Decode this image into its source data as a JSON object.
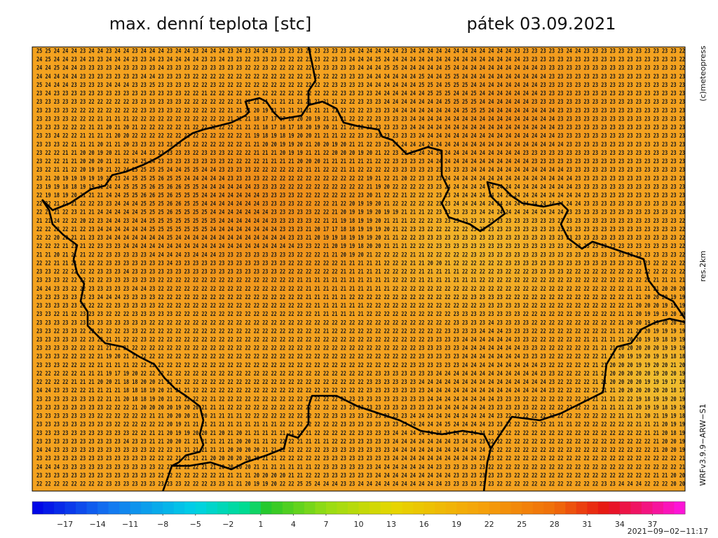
{
  "header": {
    "title": "max. denní teplota [stc]",
    "date": "pátek 03.09.2021"
  },
  "credits": "(c)meteopress",
  "resolution": "res.2km",
  "model": "WRFv3.9.9−ARW−S1",
  "timestamp": "2021−09−02−11:17",
  "map": {
    "rows": [
      "25 25 24 24 24 23 24 24 23 24 24 23 24 24 24 23 24 24 23 24 24 24 23 24 23 24 24 23 23 23 23 23 23 23 23 23 24 24 24 24 24 24 23 24 24 24 24 24 24 24 24 24 24 24 24 23 23 23 23 23 23 24 24 23 23 23 23 23 23 23 23 23 23 23 22",
      "24 25 24 24 23 24 23 23 24 24 24 23 23 24 23 24 24 24 24 23 23 24 23 23 22 23 23 23 22 22 22 23 23 22 23 23 24 24 24 25 24 24 24 24 24 24 24 24 24 24 24 24 24 24 24 24 23 23 23 23 23 23 23 23 23 23 23 23 23 23 23 23 23 23 22",
      "24 24 25 24 24 23 23 23 23 24 23 23 23 23 24 23 23 23 22 23 23 23 23 23 22 22 23 22 22 22 22 22 23 23 23 23 23 24 24 24 25 25 24 24 24 24 24 25 24 24 24 24 24 24 24 24 24 24 23 23 23 23 23 23 23 23 23 23 23 23 23 23 23 23 22",
      "24 24 24 24 24 23 23 23 23 23 23 23 24 24 23 23 23 23 22 22 22 22 22 22 22 22 22 22 22 22 22 22 22 22 22 23 23 23 24 24 24 24 24 24 25 24 24 25 25 24 24 24 24 24 24 24 24 24 24 23 23 23 23 23 23 23 23 23 23 23 23 23 23 23 23",
      "25 24 24 24 23 23 23 23 24 24 24 23 23 25 23 23 23 23 22 22 23 22 22 22 22 22 22 22 22 22 22 22 22 22 23 23 23 23 24 24 24 24 24 24 25 25 24 25 25 25 24 24 24 24 24 24 24 24 23 23 23 23 23 23 23 23 23 23 23 23 23 23 23 23 23",
      "23 24 23 23 23 23 23 23 23 23 23 23 23 23 23 23 23 22 22 21 22 22 22 22 22 22 22 22 22 22 22 22 22 22 22 23 23 23 23 24 24 24 24 24 24 25 25 25 24 24 25 24 24 24 24 24 24 24 23 23 23 23 23 23 23 23 23 23 23 23 23 23 23 23 23",
      "23 23 23 23 23 23 22 22 22 22 22 23 23 23 23 23 23 22 22 22 22 22 22 21 22 21 21 21 21 21 21 21 21 21 21 22 22 23 23 23 24 24 24 24 24 24 24 25 25 25 25 24 24 24 24 24 24 23 23 23 23 23 23 23 23 23 23 23 23 23 23 23 23 23 23",
      "23 23 23 23 22 22 22 22 22 22 22 22 23 23 23 23 22 22 22 22 22 22 21 21 21 20 19 21 21 21 21 21 21 21 21 22 22 22 23 23 23 24 24 24 24 24 24 24 24 25 25 25 24 24 24 24 24 24 24 24 23 23 23 23 23 23 23 23 23 23 23 23 23 23 23",
      "23 23 23 23 22 22 22 21 21 21 21 22 22 22 22 22 22 22 22 22 22 22 21 22 21 18 17 17 17 20 20 20 19 21 21 21 22 22 22 23 23 23 23 24 24 24 24 24 24 24 24 24 24 24 24 24 24 24 24 24 23 23 23 23 23 23 23 23 23 23 23 23 23 23 23",
      "23 23 23 22 22 22 21 21 20 21 20 21 22 22 22 22 22 21 22 22 22 22 22 21 21 21 18 17 18 17 18 20 19 20 21 21 22 22 23 23 23 23 23 24 24 24 24 24 24 24 24 24 24 24 24 24 24 24 24 24 23 23 23 23 23 23 23 23 23 23 23 23 23 23 23",
      "23 23 24 22 22 21 21 21 21 20 20 22 22 22 22 22 22 22 22 22 22 22 22 22 21 19 18 19 18 19 20 20 21 21 21 22 22 23 23 23 23 23 23 23 24 24 24 24 24 24 24 24 24 24 24 24 24 24 24 24 23 23 23 23 23 23 23 23 23 23 23 23 23 23 23",
      "23 23 23 22 21 21 21 20 21 21 20 23 23 23 23 23 23 23 22 22 22 22 22 22 21 21 20 20 19 19 20 21 20 20 19 20 21 21 22 23 23 24 24 24 24 24 24 24 24 24 24 24 24 24 24 24 24 24 24 24 24 23 23 23 23 23 23 23 23 23 23 23 23 23 23",
      "23 22 22 21 21 20 20 19 20 21 22 24 24 23 23 23 23 23 22 23 23 23 22 22 22 21 21 21 20 19 19 21 21 22 20 20 20 19 20 21 22 23 23 23 24 24 24 24 24 24 24 24 24 24 24 24 23 23 23 23 23 23 23 23 23 23 23 23 23 23 23 23 23 23 23",
      "23 22 22 21 21 20 20 20 21 21 22 24 25 24 23 23 23 23 23 23 23 23 22 22 22 22 21 21 21 21 20 20 20 21 21 21 21 21 21 22 22 23 23 23 23 24 24 24 24 24 24 24 24 24 24 24 24 23 23 23 23 23 23 23 23 23 23 23 23 23 23 23 23 23 23",
      "23 22 21 21 22 20 19 19 21 22 24 25 25 25 25 24 24 25 25 24 24 23 23 23 23 22 22 22 22 22 22 21 21 22 22 21 21 22 22 22 22 23 23 23 23 23 23 23 23 23 24 24 24 24 24 24 24 24 24 24 24 23 23 23 23 23 23 23 23 23 23 23 23 23 23",
      "23 21 20 19 19 19 19 19 21 23 24 25 25 25 26 25 25 24 24 24 24 24 23 23 23 23 22 22 22 22 22 22 22 22 22 22 22 22 19 21 22 21 20 22 23 23 23 24 24 24 24 24 24 24 24 24 24 24 24 24 24 24 23 23 23 23 23 23 23 23 23 23 23 23 23",
      "23 19 19 18 18 19 19 21 24 24 25 25 25 26 25 26 26 25 25 24 24 24 24 24 24 23 23 23 22 22 22 22 22 22 22 22 22 22 21 19 20 22 22 22 22 23 23 24 24 24 24 24 24 24 24 24 24 24 24 24 24 24 23 23 23 23 23 23 23 23 23 23 23 23 23",
      "22 19 18 19 20 21 21 21 24 24 25 25 26 26 25 26 25 25 25 24 24 24 24 24 24 24 23 23 23 23 22 22 22 22 22 22 22 23 20 21 22 22 21 22 22 22 23 23 24 24 24 24 24 24 24 24 24 24 24 24 24 24 24 23 23 23 23 23 23 23 23 23 23 23 23",
      "22 22 21 21 21 22 22 23 23 24 24 24 25 25 25 26 26 25 25 24 24 24 24 24 24 24 23 23 23 23 22 22 22 22 21 22 20 19 19 20 21 22 22 22 22 22 23 23 24 24 24 24 24 24 24 24 24 24 24 24 24 24 24 23 23 23 23 23 23 23 23 23 23 23 23",
      "22 21 21 22 23 21 21 24 24 24 24 24 25 25 25 26 25 25 25 25 24 24 24 24 24 24 24 23 23 23 23 23 22 22 21 20 19 19 19 20 19 19 21 21 21 22 23 23 23 23 23 24 24 24 24 24 24 24 24 24 24 23 23 23 23 23 23 23 23 23 23 23 23 23 23",
      "21 21 24 22 22 20 22 23 24 24 23 24 24 25 25 25 25 25 25 25 25 24 24 24 24 24 24 23 23 23 23 23 22 21 21 19 18 19 19 20 21 21 21 22 22 22 23 23 23 23 23 23 23 23 23 23 23 23 23 23 23 23 23 23 23 23 23 23 23 23 23 23 23 23 22",
      "22 22 22 22 21 22 23 24 24 24 24 24 24 25 25 25 25 25 25 25 24 24 24 24 24 24 24 24 23 23 23 21 20 17 17 18 18 19 19 19 20 21 22 23 23 22 22 22 22 22 23 23 23 23 23 23 23 23 23 23 23 23 23 23 23 23 23 23 23 23 23 23 23 23 22",
      "22 22 20 20 21 21 23 23 24 24 24 24 24 24 24 25 24 24 24 24 24 24 24 24 24 24 24 24 24 23 23 21 20 19 19 18 19 19 19 20 21 21 22 22 23 23 23 23 23 23 23 23 23 23 23 23 23 23 23 23 23 23 23 23 23 23 23 23 23 23 23 23 23 23 22",
      "22 22 22 21 21 21 22 23 23 23 24 24 24 24 24 24 24 24 24 24 24 24 24 24 24 24 24 24 24 24 23 23 22 21 20 19 19 18 20 20 21 21 21 22 22 22 23 23 23 23 23 23 23 23 23 23 23 23 23 23 23 23 23 23 23 23 23 23 23 23 23 23 23 23 22",
      "21 21 20 21 21 21 22 22 23 23 23 23 23 24 24 24 24 23 24 24 24 23 23 23 23 23 23 23 23 23 22 22 22 21 21 20 19 20 21 22 22 22 22 21 21 22 22 22 22 22 23 23 23 23 23 23 23 23 23 23 23 23 23 23 23 23 23 23 23 23 23 23 23 23 22",
      "22 22 21 21 21 22 22 22 23 23 23 23 23 23 23 24 23 23 23 23 23 23 23 23 23 23 23 23 23 22 22 22 22 22 22 21 21 21 21 21 22 22 22 21 21 20 20 21 22 22 22 22 22 22 23 23 23 23 23 23 23 23 23 23 23 23 23 23 23 23 23 22 22 22 22",
      "23 23 22 22 22 22 22 23 23 23 24 23 23 23 23 23 23 23 23 23 23 23 23 23 23 23 23 23 22 22 22 22 22 22 22 21 21 21 21 21 22 22 22 22 21 21 21 21 21 22 22 22 22 23 22 22 22 23 23 23 23 22 22 22 22 22 22 22 22 22 22 22 22 22 22",
      "23 23 23 22 22 22 22 22 23 23 23 23 23 23 22 22 22 22 22 22 22 22 22 22 22 22 22 22 22 22 21 21 21 21 21 21 21 21 21 21 21 22 22 22 21 21 21 21 21 21 21 22 22 22 22 22 22 22 22 22 22 22 22 22 22 22 22 22 22 22 22 21 21 21 21",
      "24 24 23 23 22 22 23 23 23 23 23 24 24 23 22 22 22 22 22 22 22 22 22 22 22 22 22 22 22 22 22 21 21 21 21 21 21 21 21 21 21 22 22 22 22 22 22 22 22 22 22 22 22 22 22 22 22 22 22 22 22 22 22 22 22 22 22 22 21 21 21 21 20 20 20",
      "23 23 23 23 23 23 23 24 24 24 23 23 23 23 22 22 22 22 22 22 22 22 22 22 22 22 22 22 22 22 22 21 21 21 21 21 22 22 22 22 22 22 22 22 22 22 22 22 22 22 23 23 23 23 22 22 22 22 22 22 22 22 22 22 22 22 22 22 21 21 20 20 20 19 19",
      "23 23 23 23 23 23 22 22 22 23 23 23 23 23 22 22 22 22 22 22 22 22 22 22 22 22 22 22 22 22 22 22 21 21 21 21 21 21 22 22 22 22 22 22 22 22 22 22 22 22 22 23 23 23 23 23 22 22 22 22 22 22 22 22 22 22 22 22 21 20 20 20 19 19 19",
      "23 23 22 21 22 23 23 23 22 22 22 23 23 23 23 23 22 22 22 22 22 22 22 22 22 22 22 22 22 22 22 22 21 21 21 21 21 21 22 22 22 22 22 22 22 22 22 22 23 23 23 23 23 23 23 23 22 22 22 22 22 22 22 22 22 22 22 21 21 20 19 19 19 20 19",
      "23 23 23 23 23 23 23 23 23 23 23 23 23 22 22 22 22 22 22 22 22 22 22 22 22 22 22 22 22 22 22 22 22 22 22 22 22 22 22 22 22 22 22 22 22 22 22 22 23 23 23 23 24 23 23 23 23 22 22 22 22 22 22 22 22 22 22 21 20 20 19 19 20 20 19",
      "23 23 22 23 23 22 22 22 22 22 23 23 22 22 22 22 22 22 22 22 22 22 22 22 22 22 22 22 22 22 22 22 22 21 22 22 22 22 22 22 22 22 22 22 22 22 22 23 23 23 23 24 24 24 23 23 23 22 22 22 22 22 22 22 22 22 21 21 21 20 20 19 19 19 19",
      "23 23 23 23 23 22 23 22 21 21 22 22 23 22 22 22 22 22 22 22 22 22 22 22 22 22 22 22 22 22 22 22 22 22 22 22 22 22 22 22 22 22 22 22 22 23 23 23 23 24 24 24 24 24 24 23 23 22 22 22 22 22 22 21 21 21 21 21 20 20 19 19 18 19 19",
      "23 23 23 23 22 22 22 21 21 21 21 22 22 22 22 22 22 22 22 22 22 22 22 22 22 22 22 22 22 22 22 22 22 22 22 22 22 22 22 22 22 22 22 22 23 23 23 23 23 24 24 24 24 24 24 24 23 23 22 22 22 22 22 22 21 21 21 20 20 20 20 20 19 19 19",
      "23 23 23 22 22 22 22 21 19 20 21 21 22 22 22 22 22 22 22 22 22 22 22 22 22 22 22 22 22 22 22 22 22 22 22 22 22 22 22 22 22 22 22 22 23 23 23 23 23 24 24 24 24 24 24 24 23 23 23 22 22 22 22 22 22 21 21 20 19 19 20 19 19 18 18",
      "23 23 23 22 22 22 22 21 21 21 21 22 22 22 22 22 22 22 22 22 22 22 22 22 22 22 22 22 22 22 22 22 22 22 22 22 22 22 22 22 22 22 22 23 23 23 23 23 23 24 24 24 24 24 24 24 24 24 23 22 22 22 22 22 21 21 20 20 20 19 19 20 20 21 20",
      "22 22 22 22 22 21 21 21 19 17 19 20 22 22 22 22 22 22 22 22 22 22 22 22 22 22 22 22 22 22 22 22 22 22 22 22 22 22 22 23 23 23 23 23 23 23 24 24 24 24 24 24 24 24 24 24 24 24 23 23 22 22 22 22 21 21 20 20 20 20 20 19 20 20 19",
      "22 22 22 22 21 21 21 20 20 21 18 18 20 20 21 22 22 22 22 22 22 22 22 22 22 22 22 22 22 22 22 22 22 22 22 22 22 22 23 23 23 23 23 23 24 24 24 24 24 24 24 24 24 24 24 24 24 24 24 23 22 22 22 22 21 21 20 20 20 20 19 19 19 17 19",
      "24 24 23 23 22 22 21 21 21 21 18 18 18 19 20 21 21 21 22 22 22 22 22 22 22 22 22 22 22 22 22 22 22 22 22 22 22 22 23 23 23 23 23 23 23 24 24 24 24 24 24 24 24 24 24 24 24 24 24 23 22 22 22 22 22 21 21 20 20 20 20 20 20 18 17",
      "23 23 23 23 23 23 23 22 21 21 20 18 18 19 20 21 22 22 22 22 21 22 22 22 22 22 22 22 22 22 22 22 22 22 22 22 23 23 23 23 23 23 23 23 23 24 24 24 24 24 24 24 24 23 23 23 22 22 22 22 22 22 22 21 21 21 21 22 22 19 18 19 19 20 19",
      "23 23 23 23 23 23 23 23 22 22 22 21 20 20 20 20 19 20 20 21 21 21 22 22 22 22 22 22 22 22 22 22 22 22 22 23 23 23 23 23 23 23 23 23 23 23 24 24 24 24 24 24 23 23 23 23 23 22 22 22 22 22 22 22 21 21 21 21 21 20 19 19 18 19 19",
      "23 23 23 23 23 23 23 22 22 22 22 22 22 21 21 20 20 20 21 20 21 21 21 21 22 22 22 22 22 22 22 22 22 22 23 23 23 23 23 23 23 23 23 24 24 24 24 24 24 24 24 24 24 23 22 22 22 22 22 22 22 22 22 22 22 22 22 21 21 21 20 21 19 19 18",
      "23 23 23 23 23 23 23 23 23 22 22 22 22 22 22 20 19 21 21 21 21 21 21 21 21 21 21 21 22 22 22 22 22 22 22 23 23 23 23 23 23 23 23 24 24 24 24 25 24 24 24 24 23 23 22 22 22 22 22 21 21 21 22 22 22 22 22 22 22 21 21 21 20 19 19",
      "23 23 23 23 23 23 23 23 23 23 23 22 22 21 21 20 19 19 20 20 21 20 21 20 21 21 21 21 21 21 21 21 22 22 22 22 22 23 23 23 23 24 24 24 24 24 24 24 24 25 24 24 23 22 22 22 22 22 22 22 22 22 22 22 22 22 22 22 22 22 21 21 20 18 19",
      "23 23 23 23 23 23 23 23 23 23 24 23 23 21 21 20 20 21 21 21 21 21 21 20 20 21 21 22 22 22 21 21 21 21 22 22 23 23 23 23 23 24 24 24 24 24 24 24 23 24 24 23 22 22 22 22 22 22 22 22 22 22 22 22 22 22 22 22 22 22 22 21 20 20 19",
      "24 24 23 23 23 23 23 23 23 23 23 23 23 22 22 22 21 21 21 21 21 21 20 20 20 20 21 21 22 22 22 22 22 23 23 23 23 23 23 23 23 24 24 24 24 24 24 24 24 24 24 24 22 22 22 22 22 22 22 22 22 22 22 22 22 22 22 22 22 22 22 21 20 20 19",
      "23 23 23 23 23 23 23 23 23 23 23 23 23 22 22 22 21 21 21 21 20 20 20 20 20 20 21 21 22 22 22 22 22 23 23 23 23 23 23 23 23 24 24 24 24 24 24 24 24 24 24 23 23 22 22 22 22 22 22 22 22 22 22 22 22 22 22 22 22 22 22 22 22 22 21",
      "24 24 24 23 23 23 23 23 23 23 23 23 23 23 22 22 22 22 22 21 21 20 20 20 20 21 21 21 21 21 21 21 22 23 23 23 23 23 23 24 24 24 24 24 24 24 23 23 23 23 23 23 22 22 22 22 22 22 22 22 22 22 22 22 22 22 22 22 22 22 22 22 22 22 21",
      "23 23 23 23 23 23 23 23 23 23 23 23 23 23 22 22 22 22 22 22 22 21 21 21 21 20 20 20 20 21 21 22 22 23 23 23 23 23 23 24 24 24 24 24 24 24 24 24 23 23 23 23 23 23 23 22 22 22 22 22 22 22 22 22 22 22 22 22 22 22 22 21 21 20 20",
      "22 22 22 22 22 22 22 22 23 23 23 23 23 23 23 23 23 22 22 22 23 23 21 21 20 19 19 20 22 22 25 25 24 24 24 23 23 24 24 24 24 24 24 24 24 24 24 23 23 23 23 23 23 22 22 22 22 22 22 22 22 22 22 22 22 23 23 24 24 24 22 22 22 20 20"
    ]
  },
  "colorbar": {
    "range": [
      -20,
      40
    ],
    "ticks": [
      {
        "value": -17,
        "label": "−17"
      },
      {
        "value": -14,
        "label": "−14"
      },
      {
        "value": -11,
        "label": "−11"
      },
      {
        "value": -8,
        "label": "−8"
      },
      {
        "value": -5,
        "label": "−5"
      },
      {
        "value": -2,
        "label": "−2"
      },
      1,
      4,
      7,
      10,
      13,
      16,
      19,
      22,
      25,
      28,
      31,
      34,
      37
    ]
  }
}
